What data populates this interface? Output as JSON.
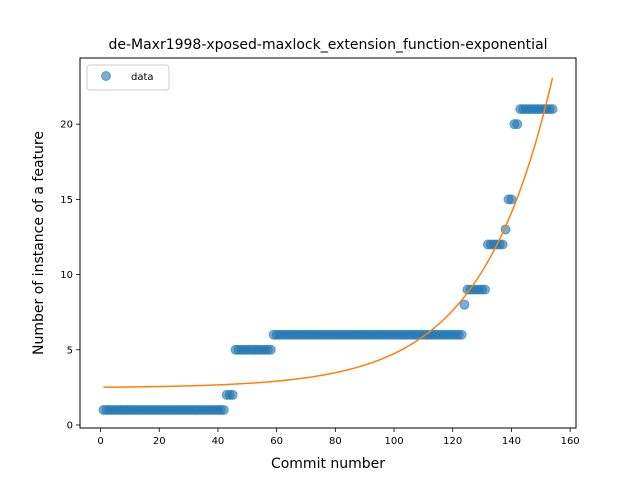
{
  "chart_data": {
    "type": "scatter",
    "title": "de-Maxr1998-xposed-maxlock_extension_function-exponential",
    "xlabel": "Commit number",
    "ylabel": "Number of instance of a feature",
    "xlim": [
      -7,
      162
    ],
    "ylim": [
      -0.2,
      24.4
    ],
    "xticks": [
      0,
      20,
      40,
      60,
      80,
      100,
      120,
      140,
      160
    ],
    "yticks": [
      0,
      5,
      10,
      15,
      20
    ],
    "grid": false,
    "legend": {
      "placement": "top-left",
      "entries": [
        "data"
      ]
    },
    "series": [
      {
        "name": "data",
        "kind": "scatter",
        "color": "#1f77b4",
        "runs": [
          {
            "x_start": 1,
            "x_end": 42,
            "y": 1
          },
          {
            "x_start": 43,
            "x_end": 45,
            "y": 2
          },
          {
            "x_start": 46,
            "x_end": 58,
            "y": 5
          },
          {
            "x_start": 59,
            "x_end": 123,
            "y": 6
          },
          {
            "x_start": 124,
            "x_end": 124,
            "y": 8
          },
          {
            "x_start": 125,
            "x_end": 131,
            "y": 9
          },
          {
            "x_start": 132,
            "x_end": 137,
            "y": 12
          },
          {
            "x_start": 138,
            "x_end": 138,
            "y": 13
          },
          {
            "x_start": 139,
            "x_end": 140,
            "y": 15
          },
          {
            "x_start": 141,
            "x_end": 142,
            "y": 20
          },
          {
            "x_start": 143,
            "x_end": 154,
            "y": 21
          }
        ]
      },
      {
        "name": "",
        "kind": "line",
        "color": "#ff7f0e",
        "model": "exponential",
        "formula": "y = a * exp(b * x) + c",
        "params": {
          "a": 0.0385,
          "b": 0.0408,
          "c": 2.47
        },
        "x_range": [
          1,
          154
        ]
      }
    ]
  }
}
